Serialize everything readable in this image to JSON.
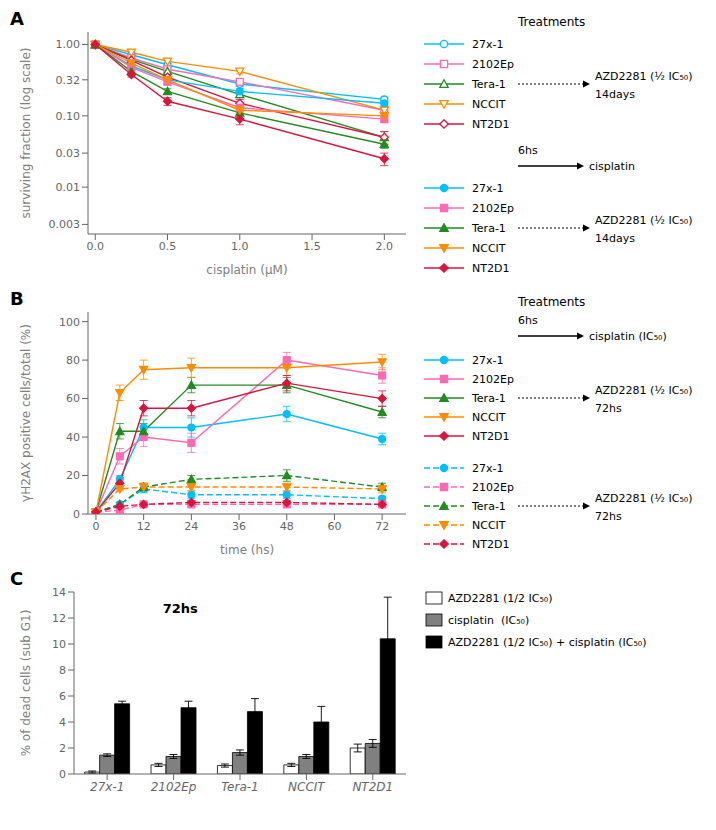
{
  "chart_data": [
    {
      "type": "line",
      "title": "A",
      "xlabel": "cisplatin (μM)",
      "ylabel": "surviving fraction (log scale)",
      "x": [
        0.0,
        0.25,
        0.5,
        1.0,
        2.0
      ],
      "xlim": [
        -0.05,
        2.15
      ],
      "ylim": [
        0.0022,
        1.5
      ],
      "log": "y",
      "xticks": [
        {
          "value": 0,
          "label": "0.0"
        },
        0.5,
        {
          "value": 1,
          "label": "1.0"
        },
        1.5,
        {
          "value": 2,
          "label": "2.0"
        }
      ],
      "yticks": [
        0.003,
        0.01,
        0.03,
        {
          "value": 0.1,
          "label": "0.10"
        },
        0.32,
        {
          "value": 1,
          "label": "1.00"
        }
      ],
      "annotations": [
        "Treatments",
        "AZD2281 (½ IC₅₀)",
        "14days",
        "6hs",
        "cisplatin",
        "AZD2281 (½ IC₅₀)",
        "14days"
      ],
      "series": [
        {
          "name": "27x-1",
          "color": "#00BFFF",
          "marker": "circle-open",
          "line_style": "solid",
          "values": [
            1.0,
            0.72,
            0.52,
            0.28,
            0.17
          ],
          "errors": [
            0.02,
            0.03,
            0.03,
            0.02,
            0.01
          ]
        },
        {
          "name": "2102Ep",
          "color": "#FF69B4",
          "marker": "square-open",
          "line_style": "solid",
          "values": [
            1.0,
            0.65,
            0.45,
            0.3,
            0.12
          ],
          "errors": [
            0.02,
            0.03,
            0.03,
            0.02,
            0.01
          ]
        },
        {
          "name": "Tera-1",
          "color": "#228B22",
          "marker": "triangle-up-open",
          "line_style": "solid",
          "values": [
            1.0,
            0.62,
            0.42,
            0.2,
            0.05
          ],
          "errors": [
            0.02,
            0.02,
            0.02,
            0.02,
            0.01
          ]
        },
        {
          "name": "NCCIT",
          "color": "#FF8C00",
          "marker": "triangle-down-open",
          "line_style": "solid",
          "values": [
            1.0,
            0.78,
            0.58,
            0.42,
            0.12
          ],
          "errors": [
            0.02,
            0.03,
            0.04,
            0.03,
            0.02
          ]
        },
        {
          "name": "NT2D1",
          "color": "#DC143C",
          "marker": "diamond-open",
          "line_style": "solid",
          "values": [
            1.0,
            0.6,
            0.35,
            0.15,
            0.05
          ],
          "errors": [
            0.02,
            0.03,
            0.03,
            0.02,
            0.01
          ]
        },
        {
          "name": "27x-1",
          "color": "#00BFFF",
          "marker": "circle",
          "line_style": "solid",
          "values": [
            1.0,
            0.5,
            0.32,
            0.22,
            0.15
          ],
          "errors": [
            0.02,
            0.03,
            0.03,
            0.02,
            0.01
          ]
        },
        {
          "name": "2102Ep",
          "color": "#FF69B4",
          "marker": "square",
          "line_style": "solid",
          "values": [
            1.0,
            0.48,
            0.3,
            0.13,
            0.09
          ],
          "errors": [
            0.02,
            0.03,
            0.02,
            0.02,
            0.01
          ]
        },
        {
          "name": "Tera-1",
          "color": "#228B22",
          "marker": "triangle-up",
          "line_style": "solid",
          "values": [
            1.0,
            0.42,
            0.22,
            0.11,
            0.04
          ],
          "errors": [
            0.02,
            0.02,
            0.02,
            0.02,
            0.005
          ]
        },
        {
          "name": "NCCIT",
          "color": "#FF8C00",
          "marker": "triangle-down",
          "line_style": "solid",
          "values": [
            1.0,
            0.55,
            0.32,
            0.12,
            0.1
          ],
          "errors": [
            0.02,
            0.03,
            0.03,
            0.02,
            0.015
          ]
        },
        {
          "name": "NT2D1",
          "color": "#DC143C",
          "marker": "diamond",
          "line_style": "solid",
          "values": [
            1.0,
            0.38,
            0.16,
            0.09,
            0.025
          ],
          "errors": [
            0.02,
            0.03,
            0.02,
            0.015,
            0.005
          ]
        }
      ]
    },
    {
      "type": "line",
      "title": "B",
      "xlabel": "time (hs)",
      "ylabel": "γH2AX positive cells/total (%)",
      "x": [
        0,
        6,
        12,
        24,
        48,
        72
      ],
      "xlim": [
        -2,
        78
      ],
      "ylim": [
        0,
        105
      ],
      "xticks": [
        0,
        12,
        24,
        36,
        48,
        60,
        72
      ],
      "yticks": [
        0,
        20,
        40,
        60,
        80,
        100
      ],
      "annotations": [
        "Treatments",
        "6hs",
        "cisplatin (IC₅₀)",
        "AZD2281 (½ IC₅₀)",
        "72hs",
        "AZD2281 (½ IC₅₀)",
        "72hs"
      ],
      "series": [
        {
          "name": "27x-1",
          "color": "#00BFFF",
          "marker": "circle",
          "line_style": "solid",
          "values": [
            1,
            18,
            45,
            45,
            52,
            39
          ],
          "errors": [
            0.5,
            2,
            4,
            5,
            4,
            3
          ]
        },
        {
          "name": "2102Ep",
          "color": "#FF69B4",
          "marker": "square",
          "line_style": "solid",
          "values": [
            1,
            30,
            40,
            37,
            80,
            72
          ],
          "errors": [
            0.5,
            4,
            5,
            5,
            4,
            4
          ]
        },
        {
          "name": "Tera-1",
          "color": "#228B22",
          "marker": "triangle-up",
          "line_style": "solid",
          "values": [
            1,
            43,
            43,
            67,
            67,
            53
          ],
          "errors": [
            0.5,
            4,
            4,
            4,
            4,
            3
          ]
        },
        {
          "name": "NCCIT",
          "color": "#FF8C00",
          "marker": "triangle-down",
          "line_style": "solid",
          "values": [
            1,
            63,
            75,
            76,
            76,
            79
          ],
          "errors": [
            0.5,
            4,
            5,
            5,
            4,
            4
          ]
        },
        {
          "name": "NT2D1",
          "color": "#DC143C",
          "marker": "diamond",
          "line_style": "solid",
          "values": [
            1,
            16,
            55,
            55,
            68,
            60
          ],
          "errors": [
            0.5,
            3,
            4,
            4,
            4,
            4
          ]
        },
        {
          "name": "27x-1",
          "color": "#00BFFF",
          "marker": "circle",
          "line_style": "dashed",
          "values": [
            1,
            5,
            13,
            10,
            10,
            8
          ],
          "errors": [
            0.5,
            1,
            2,
            2,
            2,
            1
          ]
        },
        {
          "name": "2102Ep",
          "color": "#FF69B4",
          "marker": "square",
          "line_style": "dashed",
          "values": [
            1,
            2,
            5,
            5,
            5,
            5
          ],
          "errors": [
            0.5,
            0.5,
            1,
            1,
            1,
            1
          ]
        },
        {
          "name": "Tera-1",
          "color": "#228B22",
          "marker": "triangle-up",
          "line_style": "dashed",
          "values": [
            1,
            5,
            14,
            18,
            20,
            14
          ],
          "errors": [
            0.5,
            1,
            2,
            2,
            3,
            2
          ]
        },
        {
          "name": "NCCIT",
          "color": "#FF8C00",
          "marker": "triangle-down",
          "line_style": "dashed",
          "values": [
            1,
            13,
            14,
            14,
            14,
            13
          ],
          "errors": [
            0.5,
            1,
            2,
            2,
            2,
            2
          ]
        },
        {
          "name": "NT2D1",
          "color": "#DC143C",
          "marker": "diamond",
          "line_style": "dashed",
          "values": [
            1,
            4,
            5,
            6,
            6,
            5
          ],
          "errors": [
            0.5,
            0.5,
            1,
            1,
            1,
            1
          ]
        }
      ]
    },
    {
      "type": "bar",
      "title": "C",
      "subtitle": "72hs",
      "ylabel": "% of dead cells (sub G1)",
      "categories": [
        "27x-1",
        "2102Ep",
        "Tera-1",
        "NCCIT",
        "NT2D1"
      ],
      "ylim": [
        0,
        14
      ],
      "yticks": [
        0,
        2,
        4,
        6,
        8,
        10,
        12,
        14
      ],
      "series": [
        {
          "name": "AZD2281 (1/2 IC₅₀)",
          "color": "#ffffff",
          "values": [
            0.15,
            0.7,
            0.65,
            0.7,
            2.0
          ],
          "errors": [
            0.08,
            0.12,
            0.12,
            0.12,
            0.3
          ]
        },
        {
          "name": "cisplatin  (IC₅₀)",
          "color": "#808080",
          "values": [
            1.45,
            1.35,
            1.65,
            1.35,
            2.35
          ],
          "errors": [
            0.1,
            0.15,
            0.2,
            0.15,
            0.3
          ]
        },
        {
          "name": "AZD2281 (1/2 IC₅₀) + cisplatin (IC₅₀)",
          "color": "#000000",
          "values": [
            5.4,
            5.1,
            4.8,
            4.0,
            10.4
          ],
          "errors": [
            0.2,
            0.5,
            1.0,
            1.2,
            3.2
          ]
        }
      ]
    }
  ]
}
